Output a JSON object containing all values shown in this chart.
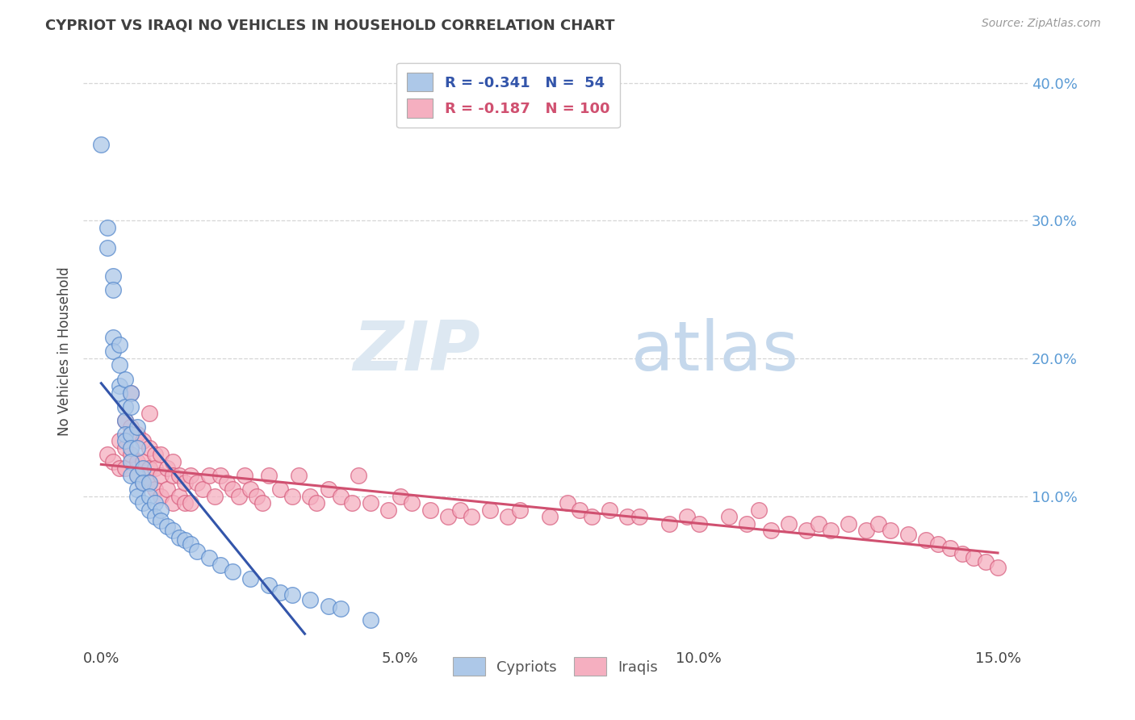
{
  "title": "CYPRIOT VS IRAQI NO VEHICLES IN HOUSEHOLD CORRELATION CHART",
  "source_text": "Source: ZipAtlas.com",
  "ylabel": "No Vehicles in Household",
  "xlim": [
    -0.003,
    0.155
  ],
  "ylim": [
    -0.01,
    0.42
  ],
  "xticks": [
    0.0,
    0.05,
    0.1,
    0.15
  ],
  "xtick_labels": [
    "0.0%",
    "5.0%",
    "10.0%",
    "15.0%"
  ],
  "yticks": [
    0.1,
    0.2,
    0.3,
    0.4
  ],
  "ytick_labels": [
    "10.0%",
    "20.0%",
    "30.0%",
    "40.0%"
  ],
  "cypriot_color": "#adc8e8",
  "iraqi_color": "#f5afc0",
  "cypriot_edge": "#5588cc",
  "iraqi_edge": "#d86080",
  "line_cypriot": "#3355aa",
  "line_iraqi": "#d05070",
  "legend_R_cypriot": "-0.341",
  "legend_N_cypriot": "54",
  "legend_R_iraqi": "-0.187",
  "legend_N_iraqi": "100",
  "cypriot_x": [
    0.0,
    0.001,
    0.001,
    0.002,
    0.002,
    0.002,
    0.002,
    0.003,
    0.003,
    0.003,
    0.003,
    0.004,
    0.004,
    0.004,
    0.004,
    0.004,
    0.005,
    0.005,
    0.005,
    0.005,
    0.005,
    0.005,
    0.006,
    0.006,
    0.006,
    0.006,
    0.006,
    0.007,
    0.007,
    0.007,
    0.008,
    0.008,
    0.008,
    0.009,
    0.009,
    0.01,
    0.01,
    0.011,
    0.012,
    0.013,
    0.014,
    0.015,
    0.016,
    0.018,
    0.02,
    0.022,
    0.025,
    0.028,
    0.03,
    0.032,
    0.035,
    0.038,
    0.04,
    0.045
  ],
  "cypriot_y": [
    0.355,
    0.295,
    0.28,
    0.26,
    0.25,
    0.215,
    0.205,
    0.21,
    0.195,
    0.18,
    0.175,
    0.185,
    0.165,
    0.155,
    0.145,
    0.14,
    0.175,
    0.165,
    0.145,
    0.135,
    0.125,
    0.115,
    0.15,
    0.135,
    0.115,
    0.105,
    0.1,
    0.12,
    0.11,
    0.095,
    0.11,
    0.1,
    0.09,
    0.095,
    0.085,
    0.09,
    0.082,
    0.078,
    0.075,
    0.07,
    0.068,
    0.065,
    0.06,
    0.055,
    0.05,
    0.045,
    0.04,
    0.035,
    0.03,
    0.028,
    0.025,
    0.02,
    0.018,
    0.01
  ],
  "iraqi_x": [
    0.001,
    0.002,
    0.003,
    0.003,
    0.004,
    0.004,
    0.004,
    0.005,
    0.005,
    0.005,
    0.006,
    0.006,
    0.006,
    0.007,
    0.007,
    0.007,
    0.008,
    0.008,
    0.008,
    0.008,
    0.009,
    0.009,
    0.009,
    0.01,
    0.01,
    0.01,
    0.011,
    0.011,
    0.012,
    0.012,
    0.012,
    0.013,
    0.013,
    0.014,
    0.014,
    0.015,
    0.015,
    0.016,
    0.017,
    0.018,
    0.019,
    0.02,
    0.021,
    0.022,
    0.023,
    0.024,
    0.025,
    0.026,
    0.027,
    0.028,
    0.03,
    0.032,
    0.033,
    0.035,
    0.036,
    0.038,
    0.04,
    0.042,
    0.043,
    0.045,
    0.048,
    0.05,
    0.052,
    0.055,
    0.058,
    0.06,
    0.062,
    0.065,
    0.068,
    0.07,
    0.075,
    0.078,
    0.08,
    0.082,
    0.085,
    0.088,
    0.09,
    0.095,
    0.098,
    0.1,
    0.105,
    0.108,
    0.11,
    0.112,
    0.115,
    0.118,
    0.12,
    0.122,
    0.125,
    0.128,
    0.13,
    0.132,
    0.135,
    0.138,
    0.14,
    0.142,
    0.144,
    0.146,
    0.148,
    0.15
  ],
  "iraqi_y": [
    0.13,
    0.125,
    0.14,
    0.12,
    0.155,
    0.135,
    0.12,
    0.175,
    0.15,
    0.13,
    0.145,
    0.125,
    0.115,
    0.14,
    0.125,
    0.11,
    0.16,
    0.135,
    0.12,
    0.11,
    0.13,
    0.12,
    0.105,
    0.13,
    0.115,
    0.1,
    0.12,
    0.105,
    0.125,
    0.115,
    0.095,
    0.115,
    0.1,
    0.11,
    0.095,
    0.115,
    0.095,
    0.11,
    0.105,
    0.115,
    0.1,
    0.115,
    0.11,
    0.105,
    0.1,
    0.115,
    0.105,
    0.1,
    0.095,
    0.115,
    0.105,
    0.1,
    0.115,
    0.1,
    0.095,
    0.105,
    0.1,
    0.095,
    0.115,
    0.095,
    0.09,
    0.1,
    0.095,
    0.09,
    0.085,
    0.09,
    0.085,
    0.09,
    0.085,
    0.09,
    0.085,
    0.095,
    0.09,
    0.085,
    0.09,
    0.085,
    0.085,
    0.08,
    0.085,
    0.08,
    0.085,
    0.08,
    0.09,
    0.075,
    0.08,
    0.075,
    0.08,
    0.075,
    0.08,
    0.075,
    0.08,
    0.075,
    0.072,
    0.068,
    0.065,
    0.062,
    0.058,
    0.055,
    0.052,
    0.048
  ]
}
